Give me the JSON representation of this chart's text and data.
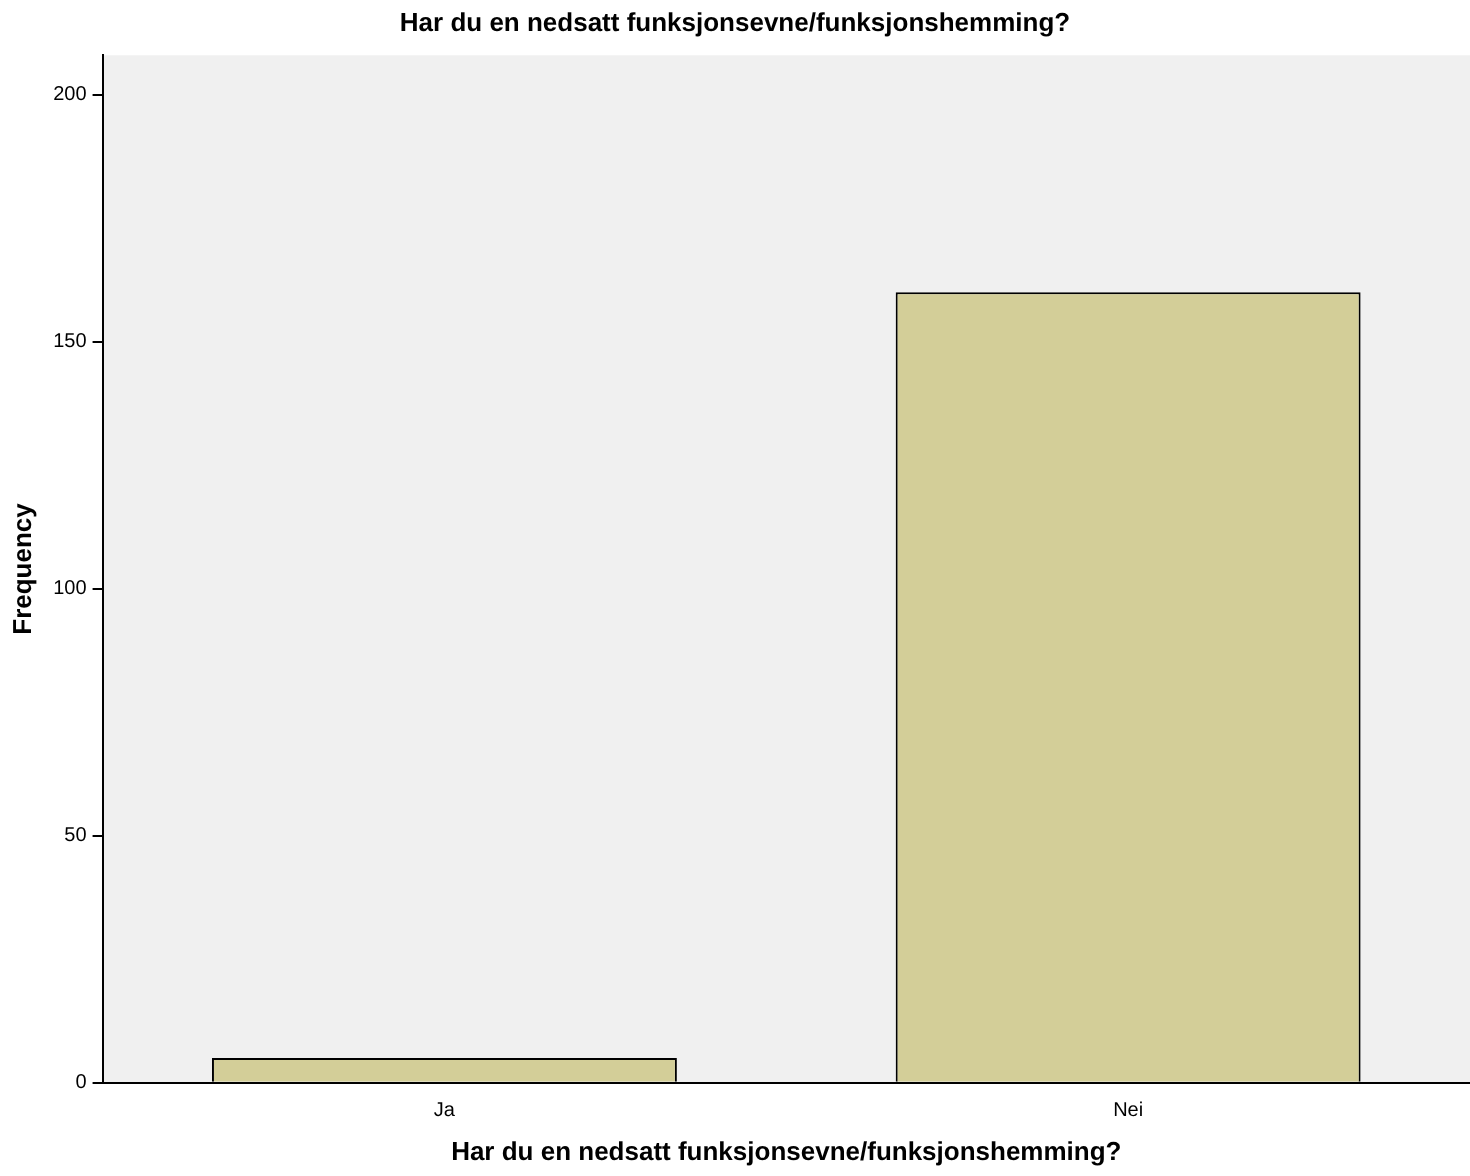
{
  "chart_data": {
    "type": "bar",
    "title": "Har du en nedsatt funksjonsevne/funksjonshemming?",
    "xlabel": "Har du en nedsatt funksjonsevne/funksjonshemming?",
    "ylabel": "Frequency",
    "categories": [
      "Ja",
      "Nei"
    ],
    "values": [
      5,
      160
    ],
    "color": "#d3ce98",
    "ylim": [
      0,
      208
    ],
    "yticks": [
      0,
      50,
      100,
      150,
      200
    ],
    "grid": false,
    "legend": false
  }
}
